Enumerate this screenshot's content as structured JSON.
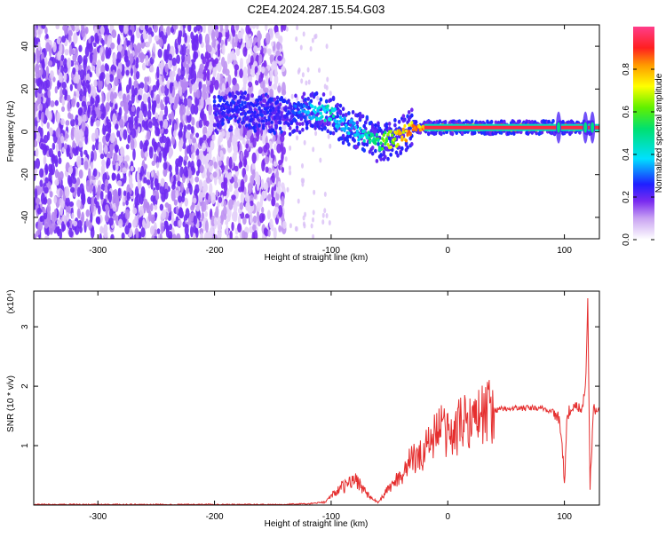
{
  "title": "C2E4.2024.287.15.54.G03",
  "chart_data": [
    {
      "type": "heatmap",
      "xlabel": "Height of straight line (km)",
      "ylabel": "Frequency (Hz)",
      "xlim": [
        -355,
        130
      ],
      "ylim": [
        -50,
        50
      ],
      "xticks": [
        -300,
        -200,
        -100,
        0,
        100
      ],
      "yticks": [
        -40,
        -20,
        0,
        20,
        40
      ],
      "colorbar": {
        "label": "Normalized spectral amplitude",
        "range": [
          0,
          1
        ],
        "ticks": [
          "0.0",
          "0.2",
          "0.4",
          "0.6",
          "0.8"
        ]
      },
      "ridge": {
        "x": [
          -200,
          -180,
          -160,
          -140,
          -125,
          -110,
          -100,
          -90,
          -80,
          -70,
          -60,
          -50,
          -40,
          -30,
          -20,
          0,
          20,
          40,
          60,
          80,
          100,
          115,
          125
        ],
        "freq": [
          8,
          10,
          9,
          7,
          9,
          10,
          8,
          4,
          1,
          -2,
          -5,
          -4,
          -2,
          2,
          2,
          2,
          2,
          2,
          2,
          2,
          2,
          2,
          2
        ],
        "amplitude": [
          0.25,
          0.3,
          0.28,
          0.25,
          0.35,
          0.45,
          0.5,
          0.4,
          0.4,
          0.5,
          0.6,
          0.7,
          0.85,
          0.9,
          0.95,
          1.0,
          1.0,
          1.0,
          1.0,
          1.0,
          1.0,
          1.0,
          1.0
        ]
      }
    },
    {
      "type": "line",
      "xlabel": "Height of straight line (km)",
      "ylabel": "SNR (10 * v/v)",
      "multiplier": "(x10⁴)",
      "xlim": [
        -355,
        130
      ],
      "ylim": [
        0,
        3.6
      ],
      "xticks": [
        -300,
        -200,
        -100,
        0,
        100
      ],
      "yticks": [
        1,
        2,
        3
      ],
      "series": [
        {
          "color": "#e52e2e",
          "x": [
            -355,
            -300,
            -250,
            -200,
            -150,
            -120,
            -105,
            -100,
            -95,
            -90,
            -85,
            -80,
            -75,
            -70,
            -65,
            -60,
            -55,
            -50,
            -45,
            -40,
            -35,
            -30,
            -25,
            -20,
            -15,
            -10,
            -5,
            0,
            5,
            10,
            15,
            20,
            25,
            30,
            35,
            40,
            50,
            60,
            70,
            80,
            85,
            90,
            95,
            98,
            100,
            102,
            105,
            110,
            115,
            118,
            120,
            122,
            125,
            130
          ],
          "y": [
            0.01,
            0.01,
            0.01,
            0.01,
            0.01,
            0.02,
            0.05,
            0.15,
            0.25,
            0.3,
            0.35,
            0.45,
            0.35,
            0.2,
            0.1,
            0.05,
            0.15,
            0.3,
            0.4,
            0.5,
            0.65,
            0.8,
            0.75,
            0.95,
            1.1,
            1.25,
            1.3,
            1.2,
            1.15,
            1.35,
            1.45,
            1.45,
            1.5,
            1.55,
            1.58,
            1.6,
            1.62,
            1.63,
            1.63,
            1.63,
            1.6,
            1.58,
            1.45,
            1.1,
            0.3,
            1.5,
            1.6,
            1.62,
            1.63,
            1.9,
            3.5,
            0.3,
            1.6,
            1.6
          ]
        }
      ]
    }
  ]
}
